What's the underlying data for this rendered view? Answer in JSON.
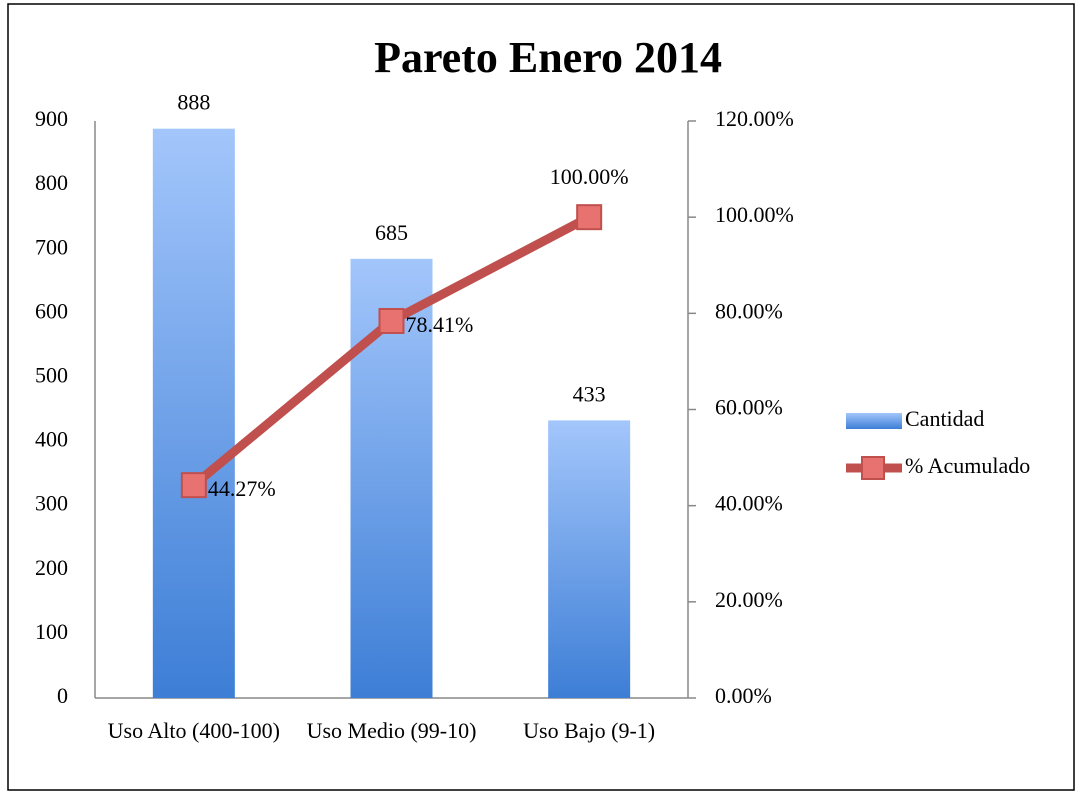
{
  "chart_data": {
    "type": "pareto",
    "title": "Pareto Enero 2014",
    "categories": [
      "Uso Alto (400-100)",
      "Uso Medio (99-10)",
      "Uso Bajo (9-1)"
    ],
    "series": [
      {
        "name": "Cantidad",
        "type": "bar",
        "color": "#4f86d9",
        "values": [
          888,
          685,
          433
        ]
      },
      {
        "name": "% Acumulado",
        "type": "line",
        "axis": "y2",
        "color": "#c0504d",
        "values": [
          44.27,
          78.41,
          100
        ],
        "value_labels": [
          "44.27%",
          "78.41%",
          "100.00%"
        ]
      }
    ],
    "ylim": [
      0,
      900
    ],
    "yticks": [
      0,
      100,
      200,
      300,
      400,
      500,
      600,
      700,
      800,
      900
    ],
    "y2lim": [
      0,
      120
    ],
    "y2ticks": [
      {
        "value": 0,
        "label": "0.00%"
      },
      {
        "value": 20,
        "label": "20.00%"
      },
      {
        "value": 40,
        "label": "40.00%"
      },
      {
        "value": 60,
        "label": "60.00%"
      },
      {
        "value": 80,
        "label": "80.00%"
      },
      {
        "value": 100,
        "label": "100.00%"
      },
      {
        "value": 120,
        "label": "120.00%"
      }
    ],
    "legend": "right"
  }
}
